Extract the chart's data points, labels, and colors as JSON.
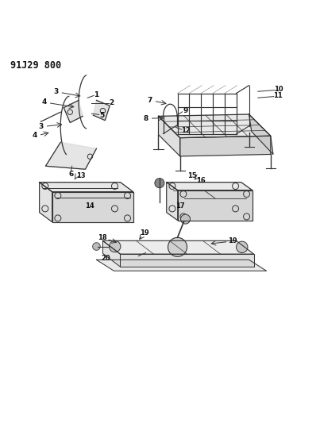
{
  "title": "91J29 800",
  "background_color": "#ffffff",
  "line_color": "#333333",
  "text_color": "#111111",
  "fig_width": 4.03,
  "fig_height": 5.33,
  "dpi": 100
}
